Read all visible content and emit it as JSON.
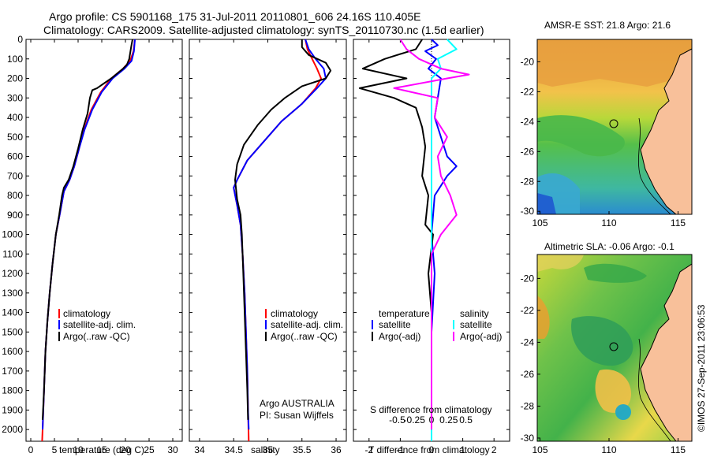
{
  "title": {
    "line1": "Argo profile: CS 5901168_175 31-Jul-2011 20110801_606 24.16S 110.405E",
    "line2": "Climatology: CARS2009. Satellite-adjusted climatology: synTS_20110730.nc (1.5d earlier)"
  },
  "timestamp": "©IMOS 27-Sep-2011 23:06:53",
  "colors": {
    "climatology": "#ff0000",
    "satellite": "#0000ff",
    "argo": "#000000",
    "satellite_salinity": "#00ffff",
    "argo_salinity": "#ff00ff"
  },
  "chart_data": [
    {
      "id": "temperature",
      "type": "line",
      "xlabel": "temperature (deg C)",
      "ylabel": "",
      "xlim": [
        -1,
        32
      ],
      "ylim": [
        2060,
        0
      ],
      "xticks": [
        0,
        5,
        10,
        15,
        20,
        25,
        30
      ],
      "yticks": [
        0,
        100,
        200,
        300,
        400,
        500,
        600,
        700,
        800,
        900,
        1000,
        1100,
        1200,
        1300,
        1400,
        1500,
        1600,
        1700,
        1800,
        1900,
        2000
      ],
      "legend": [
        "climatology",
        "satellite-adj. clim.",
        "Argo(..raw -QC)"
      ],
      "series": [
        {
          "name": "climatology",
          "color": "#ff0000",
          "points": [
            [
              22,
              0
            ],
            [
              21.7,
              60
            ],
            [
              21,
              110
            ],
            [
              19.5,
              150
            ],
            [
              17,
              200
            ],
            [
              14.8,
              270
            ],
            [
              12.8,
              360
            ],
            [
              11.3,
              460
            ],
            [
              10.2,
              560
            ],
            [
              9.2,
              650
            ],
            [
              8.2,
              720
            ],
            [
              7,
              780
            ],
            [
              6.1,
              900
            ],
            [
              5.3,
              1000
            ],
            [
              4.6,
              1150
            ],
            [
              4,
              1300
            ],
            [
              3.5,
              1450
            ],
            [
              3.1,
              1600
            ],
            [
              2.8,
              1800
            ],
            [
              2.5,
              2000
            ],
            [
              2.4,
              2060
            ]
          ]
        },
        {
          "name": "satellite-adj. clim.",
          "color": "#0000ff",
          "points": [
            [
              22,
              0
            ],
            [
              21.8,
              60
            ],
            [
              21.3,
              110
            ],
            [
              19.8,
              150
            ],
            [
              17.3,
              200
            ],
            [
              15,
              270
            ],
            [
              13,
              360
            ],
            [
              11.4,
              460
            ],
            [
              10.2,
              560
            ],
            [
              9.2,
              650
            ],
            [
              8.2,
              720
            ],
            [
              7,
              780
            ],
            [
              6.1,
              900
            ],
            [
              5.3,
              1000
            ],
            [
              4.6,
              1150
            ],
            [
              4,
              1300
            ],
            [
              3.5,
              1450
            ],
            [
              3.1,
              1600
            ],
            [
              2.8,
              1800
            ],
            [
              2.5,
              2000
            ]
          ]
        },
        {
          "name": "Argo(..raw -QC)",
          "color": "#000000",
          "points": [
            [
              21.5,
              0
            ],
            [
              21.2,
              40
            ],
            [
              20.8,
              100
            ],
            [
              20.3,
              130
            ],
            [
              19.5,
              150
            ],
            [
              17,
              200
            ],
            [
              14,
              250
            ],
            [
              13,
              260
            ],
            [
              12.5,
              300
            ],
            [
              12,
              380
            ],
            [
              11,
              460
            ],
            [
              10,
              560
            ],
            [
              9,
              650
            ],
            [
              8,
              720
            ],
            [
              7,
              760
            ],
            [
              6.6,
              800
            ],
            [
              6,
              900
            ],
            [
              5.3,
              1000
            ],
            [
              4.6,
              1150
            ],
            [
              4,
              1300
            ],
            [
              3.5,
              1450
            ],
            [
              3.1,
              1600
            ],
            [
              2.8,
              1800
            ],
            [
              2.5,
              1950
            ]
          ]
        }
      ]
    },
    {
      "id": "salinity",
      "type": "line",
      "xlabel": "salinity",
      "ylabel": "",
      "xlim": [
        33.85,
        36.15
      ],
      "ylim": [
        2060,
        0
      ],
      "xticks": [
        34,
        34.5,
        35,
        35.5,
        36
      ],
      "legend": [
        "climatology",
        "satellite-adj. clim.",
        "Argo(..raw -QC)"
      ],
      "annotation": [
        "Argo AUSTRALIA",
        "PI: Susan Wijffels"
      ],
      "series": [
        {
          "name": "climatology",
          "color": "#ff0000",
          "points": [
            [
              35.55,
              0
            ],
            [
              35.58,
              50
            ],
            [
              35.65,
              100
            ],
            [
              35.72,
              150
            ],
            [
              35.78,
              200
            ],
            [
              35.7,
              250
            ],
            [
              35.5,
              330
            ],
            [
              35.2,
              420
            ],
            [
              34.95,
              520
            ],
            [
              34.7,
              620
            ],
            [
              34.55,
              720
            ],
            [
              34.5,
              760
            ],
            [
              34.55,
              850
            ],
            [
              34.6,
              950
            ],
            [
              34.63,
              1100
            ],
            [
              34.66,
              1300
            ],
            [
              34.68,
              1500
            ],
            [
              34.7,
              1700
            ],
            [
              34.71,
              1900
            ],
            [
              34.72,
              2060
            ]
          ]
        },
        {
          "name": "satellite-adj. clim.",
          "color": "#0000ff",
          "points": [
            [
              35.55,
              0
            ],
            [
              35.6,
              50
            ],
            [
              35.7,
              100
            ],
            [
              35.82,
              150
            ],
            [
              35.85,
              200
            ],
            [
              35.72,
              250
            ],
            [
              35.5,
              330
            ],
            [
              35.2,
              420
            ],
            [
              34.95,
              520
            ],
            [
              34.7,
              620
            ],
            [
              34.55,
              720
            ],
            [
              34.5,
              760
            ],
            [
              34.55,
              850
            ],
            [
              34.6,
              950
            ],
            [
              34.63,
              1100
            ],
            [
              34.66,
              1300
            ],
            [
              34.68,
              1500
            ],
            [
              34.7,
              1700
            ],
            [
              34.71,
              1900
            ],
            [
              34.72,
              2000
            ]
          ]
        },
        {
          "name": "Argo(..raw -QC)",
          "color": "#000000",
          "points": [
            [
              35.5,
              0
            ],
            [
              35.5,
              40
            ],
            [
              35.6,
              80
            ],
            [
              35.85,
              120
            ],
            [
              35.92,
              160
            ],
            [
              35.85,
              200
            ],
            [
              35.5,
              240
            ],
            [
              35.25,
              300
            ],
            [
              35.05,
              360
            ],
            [
              34.85,
              440
            ],
            [
              34.65,
              540
            ],
            [
              34.55,
              640
            ],
            [
              34.52,
              720
            ],
            [
              34.55,
              820
            ],
            [
              34.6,
              900
            ],
            [
              34.62,
              1000
            ],
            [
              34.64,
              1200
            ],
            [
              34.66,
              1400
            ],
            [
              34.68,
              1600
            ],
            [
              34.7,
              1800
            ],
            [
              34.71,
              1950
            ]
          ]
        }
      ]
    },
    {
      "id": "difference",
      "type": "line",
      "xlabel": "T difference from climatology",
      "top_label": "S difference from climatology",
      "xlim": [
        -2.5,
        2.5
      ],
      "ylim": [
        2060,
        0
      ],
      "xticks": [
        -2,
        -1,
        0,
        1,
        2
      ],
      "xticklabels": [
        "-2",
        "-1",
        "0",
        "1",
        "2"
      ],
      "sticks": [
        -0.5,
        -0.25,
        0,
        0.25,
        0.5
      ],
      "sticklabels": [
        "-0.5",
        "-0.25",
        "0",
        "0.25",
        "0.5"
      ],
      "legend_headers": [
        "temperature",
        "salinity"
      ],
      "legend": [
        "satellite",
        "Argo(-adj)",
        "satellite",
        "Argo(-adj)"
      ],
      "series": [
        {
          "name": "temperature satellite",
          "color": "#0000ff",
          "points": [
            [
              0,
              0
            ],
            [
              0.2,
              30
            ],
            [
              -0.2,
              60
            ],
            [
              0.15,
              100
            ],
            [
              -0.1,
              150
            ],
            [
              0.3,
              200
            ],
            [
              0.2,
              300
            ],
            [
              0.1,
              400
            ],
            [
              0.3,
              500
            ],
            [
              0.5,
              600
            ],
            [
              0.8,
              650
            ],
            [
              0.5,
              700
            ],
            [
              0.1,
              800
            ],
            [
              0,
              1000
            ],
            [
              0.1,
              1200
            ],
            [
              0,
              1500
            ],
            [
              0,
              2000
            ]
          ]
        },
        {
          "name": "temperature Argo(-adj)",
          "color": "#000000",
          "points": [
            [
              -0.3,
              0
            ],
            [
              -0.5,
              50
            ],
            [
              -1.5,
              100
            ],
            [
              -2.2,
              150
            ],
            [
              -0.8,
              200
            ],
            [
              -2.3,
              250
            ],
            [
              -1.2,
              300
            ],
            [
              -0.5,
              350
            ],
            [
              -0.3,
              450
            ],
            [
              -0.2,
              550
            ],
            [
              -0.3,
              700
            ],
            [
              -0.1,
              800
            ],
            [
              -0.2,
              950
            ],
            [
              0.05,
              1000
            ],
            [
              -0.1,
              1200
            ],
            [
              0,
              1400
            ],
            [
              0,
              2000
            ]
          ]
        },
        {
          "name": "salinity satellite",
          "color": "#00ffff",
          "points": [
            [
              0.5,
              0
            ],
            [
              0.8,
              50
            ],
            [
              0.2,
              100
            ],
            [
              0.3,
              150
            ],
            [
              0,
              200
            ],
            [
              0,
              300
            ],
            [
              0,
              400
            ],
            [
              0,
              600
            ],
            [
              0,
              800
            ],
            [
              0,
              1000
            ],
            [
              0,
              1200
            ],
            [
              0,
              1500
            ],
            [
              0,
              2060
            ]
          ]
        },
        {
          "name": "salinity Argo(-adj)",
          "color": "#ff00ff",
          "points": [
            [
              -1,
              0
            ],
            [
              -0.8,
              50
            ],
            [
              -0.4,
              100
            ],
            [
              0.3,
              150
            ],
            [
              1.2,
              180
            ],
            [
              0.5,
              200
            ],
            [
              -1.2,
              250
            ],
            [
              0.2,
              300
            ],
            [
              0.1,
              400
            ],
            [
              0.5,
              500
            ],
            [
              0.2,
              600
            ],
            [
              0.3,
              700
            ],
            [
              0.6,
              800
            ],
            [
              0.8,
              900
            ],
            [
              0.3,
              1000
            ],
            [
              0,
              1100
            ],
            [
              0,
              1500
            ],
            [
              0,
              2000
            ]
          ]
        }
      ]
    },
    {
      "id": "sst_map",
      "type": "heatmap",
      "title": "AMSR-E SST: 21.8 Argo: 21.6",
      "xticks": [
        105,
        110,
        115
      ],
      "yticks": [
        -20,
        -22,
        -24,
        -26,
        -28,
        -30
      ],
      "xlim": [
        104.8,
        116.0
      ],
      "ylim": [
        -30.2,
        -18.5
      ],
      "float_position": [
        110.405,
        -24.16
      ]
    },
    {
      "id": "sla_map",
      "type": "heatmap",
      "title": "Altimetric SLA: -0.06 Argo: -0.1",
      "xticks": [
        105,
        110,
        115
      ],
      "yticks": [
        -20,
        -22,
        -24,
        -26,
        -28,
        -30
      ],
      "xlim": [
        104.8,
        116.0
      ],
      "ylim": [
        -30.2,
        -18.5
      ],
      "float_position": [
        110.405,
        -24.16
      ]
    }
  ]
}
